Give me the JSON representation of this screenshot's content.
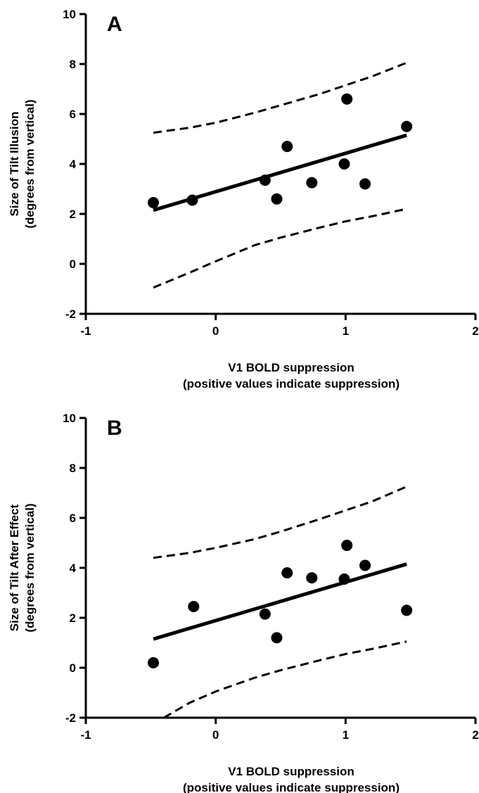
{
  "chart_data": [
    {
      "type": "scatter",
      "panel_label": "A",
      "xlabel_line1": "V1 BOLD suppression",
      "xlabel_line2": "(positive values indicate suppression)",
      "ylabel_line1": "Size of Tilt Illusion",
      "ylabel_line2": "(degrees from vertical)",
      "xlim": [
        -1,
        2
      ],
      "ylim": [
        -2,
        10
      ],
      "x_ticks": [
        -1,
        0,
        1,
        2
      ],
      "y_ticks": [
        -2,
        0,
        2,
        4,
        6,
        8,
        10
      ],
      "x_tick_labels": [
        "-1",
        "0",
        "1",
        "2"
      ],
      "y_tick_labels": [
        "-2",
        "0",
        "2",
        "4",
        "6",
        "8",
        "10"
      ],
      "grid": false,
      "points": [
        {
          "x": -0.48,
          "y": 2.45
        },
        {
          "x": -0.18,
          "y": 2.55
        },
        {
          "x": 0.38,
          "y": 3.35
        },
        {
          "x": 0.47,
          "y": 2.6
        },
        {
          "x": 0.55,
          "y": 4.7
        },
        {
          "x": 0.74,
          "y": 3.25
        },
        {
          "x": 0.99,
          "y": 4.0
        },
        {
          "x": 1.01,
          "y": 6.6
        },
        {
          "x": 1.15,
          "y": 3.2
        },
        {
          "x": 1.47,
          "y": 5.5
        }
      ],
      "fit_line": {
        "x": [
          -0.48,
          1.47
        ],
        "y": [
          2.15,
          5.15
        ]
      },
      "band_upper": {
        "x": [
          -0.48,
          -0.2,
          0.0,
          0.3,
          0.5,
          0.8,
          1.0,
          1.2,
          1.47
        ],
        "y": [
          5.25,
          5.45,
          5.65,
          6.05,
          6.35,
          6.8,
          7.15,
          7.5,
          8.05
        ]
      },
      "band_lower": {
        "x": [
          -0.48,
          -0.2,
          0.0,
          0.3,
          0.5,
          0.8,
          1.0,
          1.2,
          1.47
        ],
        "y": [
          -0.95,
          -0.35,
          0.1,
          0.75,
          1.05,
          1.45,
          1.7,
          1.9,
          2.2
        ]
      }
    },
    {
      "type": "scatter",
      "panel_label": "B",
      "xlabel_line1": "V1 BOLD suppression",
      "xlabel_line2": "(positive values indicate suppression)",
      "ylabel_line1": "Size of Tilt After Effect",
      "ylabel_line2": "(degrees from vertical)",
      "xlim": [
        -1,
        2
      ],
      "ylim": [
        -2,
        10
      ],
      "x_ticks": [
        -1,
        0,
        1,
        2
      ],
      "y_ticks": [
        -2,
        0,
        2,
        4,
        6,
        8,
        10
      ],
      "x_tick_labels": [
        "-1",
        "0",
        "1",
        "2"
      ],
      "y_tick_labels": [
        "-2",
        "0",
        "2",
        "4",
        "6",
        "8",
        "10"
      ],
      "grid": false,
      "points": [
        {
          "x": -0.48,
          "y": 0.2
        },
        {
          "x": -0.17,
          "y": 2.45
        },
        {
          "x": 0.38,
          "y": 2.15
        },
        {
          "x": 0.47,
          "y": 1.2
        },
        {
          "x": 0.55,
          "y": 3.8
        },
        {
          "x": 0.74,
          "y": 3.6
        },
        {
          "x": 0.99,
          "y": 3.55
        },
        {
          "x": 1.01,
          "y": 4.9
        },
        {
          "x": 1.15,
          "y": 4.1
        },
        {
          "x": 1.47,
          "y": 2.3
        }
      ],
      "fit_line": {
        "x": [
          -0.48,
          1.47
        ],
        "y": [
          1.15,
          4.15
        ]
      },
      "band_upper": {
        "x": [
          -0.48,
          -0.2,
          0.0,
          0.3,
          0.5,
          0.8,
          1.0,
          1.2,
          1.47
        ],
        "y": [
          4.4,
          4.6,
          4.8,
          5.15,
          5.45,
          5.95,
          6.3,
          6.65,
          7.25
        ]
      },
      "band_lower": {
        "x": [
          -0.4,
          -0.2,
          0.0,
          0.3,
          0.5,
          0.8,
          1.0,
          1.2,
          1.47
        ],
        "y": [
          -2.0,
          -1.4,
          -0.95,
          -0.4,
          -0.1,
          0.3,
          0.55,
          0.75,
          1.05
        ]
      }
    }
  ]
}
